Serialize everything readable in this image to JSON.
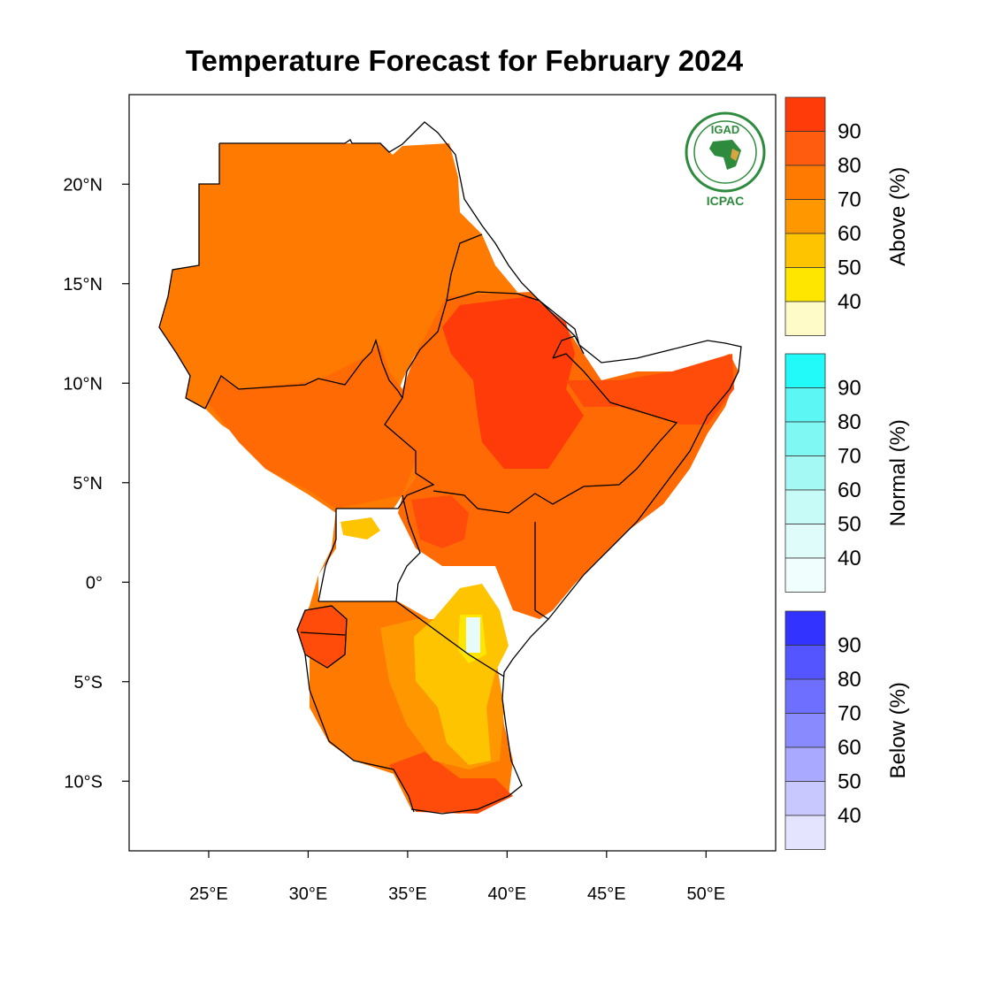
{
  "title": "Temperature Forecast for February 2024",
  "map": {
    "lon_range": [
      21,
      53.5
    ],
    "lat_range": [
      -13.5,
      24.5
    ],
    "lon_ticks": [
      {
        "value": 25,
        "label": "25°E"
      },
      {
        "value": 30,
        "label": "30°E"
      },
      {
        "value": 35,
        "label": "35°E"
      },
      {
        "value": 40,
        "label": "40°E"
      },
      {
        "value": 45,
        "label": "45°E"
      },
      {
        "value": 50,
        "label": "50°E"
      }
    ],
    "lat_ticks": [
      {
        "value": 20,
        "label": "20°N"
      },
      {
        "value": 15,
        "label": "15°N"
      },
      {
        "value": 10,
        "label": "10°N"
      },
      {
        "value": 5,
        "label": "5°N"
      },
      {
        "value": 0,
        "label": "0°"
      },
      {
        "value": -5,
        "label": "5°S"
      },
      {
        "value": -10,
        "label": "10°S"
      }
    ]
  },
  "logo": {
    "top_text": "IGAD",
    "bottom_text": "ICPAC",
    "color": "#2e8b3e"
  },
  "legends": [
    {
      "label": "Above (%)",
      "tick_labels": [
        "90",
        "80",
        "70",
        "60",
        "50",
        "40"
      ],
      "colors": [
        "#ff3b0a",
        "#ff5c0f",
        "#ff7a00",
        "#ff9700",
        "#ffc400",
        "#ffe600",
        "#fffbc8"
      ]
    },
    {
      "label": "Normal (%)",
      "tick_labels": [
        "90",
        "80",
        "70",
        "60",
        "50",
        "40"
      ],
      "colors": [
        "#22fafa",
        "#5cf7f5",
        "#7ff8f4",
        "#a4f9f5",
        "#c6fbf7",
        "#dffcfa",
        "#f0fefd"
      ]
    },
    {
      "label": "Below (%)",
      "tick_labels": [
        "90",
        "80",
        "70",
        "60",
        "50",
        "40"
      ],
      "colors": [
        "#3333ff",
        "#5555ff",
        "#6e6eff",
        "#8a8aff",
        "#a9a9ff",
        "#c8c8ff",
        "#e4e4ff"
      ]
    }
  ]
}
